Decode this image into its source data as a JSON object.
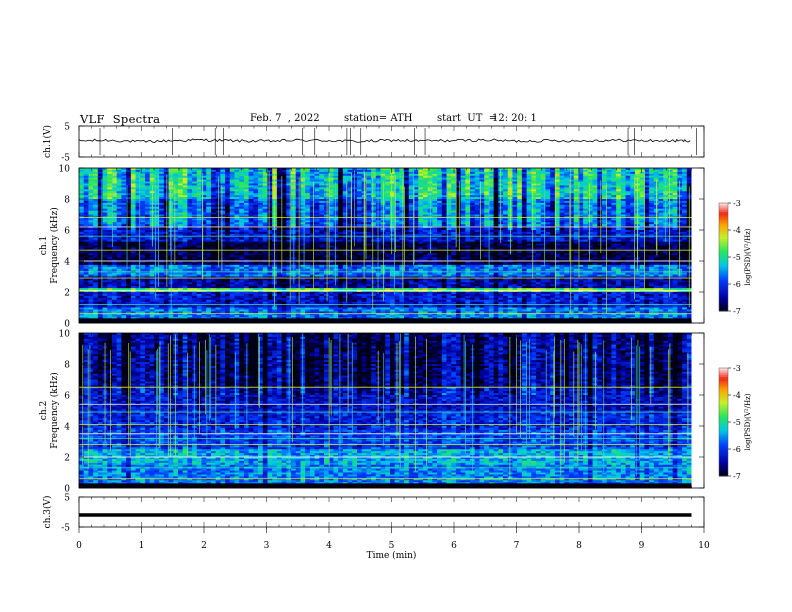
{
  "header": {
    "title": "VLF  Spectra",
    "date": "Feb. 7  , 2022",
    "station": "station= ATH",
    "start_ut_label": "start  UT  =",
    "start_ut_value": "12: 20: 1"
  },
  "chart_data": [
    {
      "type": "line",
      "name": "ch1-waveform",
      "ylabel": "ch.1(V)",
      "ylim": [
        -5,
        5
      ],
      "yticks": [
        "5",
        "-5"
      ],
      "xlim": [
        0,
        10
      ],
      "x": [
        0,
        0.5,
        1,
        1.5,
        2,
        2.5,
        3,
        3.5,
        4,
        4.5,
        5,
        5.5,
        6,
        6.5,
        7,
        7.5,
        8,
        8.5,
        9,
        9.5,
        9.8
      ],
      "y": [
        0.2,
        0.4,
        -0.1,
        0.3,
        0.5,
        0.2,
        0.1,
        0.4,
        0.3,
        0.0,
        0.4,
        0.2,
        0.3,
        0.5,
        0.1,
        0.3,
        0.2,
        0.4,
        0.3,
        0.2,
        0.3
      ],
      "color": "#000000"
    },
    {
      "type": "heatmap",
      "name": "ch1-spectrogram",
      "ylabel": "ch.1\nFrequency  (kHz)",
      "ylim": [
        0,
        10
      ],
      "yticks": [
        "0",
        "2",
        "4",
        "6",
        "8",
        "10"
      ],
      "xlim": [
        0,
        10
      ],
      "data_end_min": 9.8,
      "colorbar": {
        "label": "log(PSD)(V²/Hz)",
        "range": [
          -7,
          -3
        ],
        "ticks": [
          "-3",
          "-4",
          "-5",
          "-6",
          "-7"
        ]
      },
      "bands": [
        {
          "from": 0,
          "to": 0.3,
          "level": -7.0
        },
        {
          "from": 0.3,
          "to": 1.0,
          "level": -5.6
        },
        {
          "from": 1.0,
          "to": 2.0,
          "level": -6.2
        },
        {
          "from": 2.0,
          "to": 2.3,
          "level": -4.6
        },
        {
          "from": 2.3,
          "to": 3.0,
          "level": -6.4
        },
        {
          "from": 3.0,
          "to": 3.8,
          "level": -5.6
        },
        {
          "from": 3.8,
          "to": 5.2,
          "level": -6.8
        },
        {
          "from": 5.2,
          "to": 6.2,
          "level": -6.2
        },
        {
          "from": 6.2,
          "to": 8.0,
          "level": -5.6
        },
        {
          "from": 8.0,
          "to": 10.0,
          "level": -5.1
        }
      ],
      "tones_khz": [
        0.6,
        1.2,
        2.1,
        2.9,
        3.3,
        4.0,
        4.7,
        5.6,
        6.2,
        6.8
      ]
    },
    {
      "type": "heatmap",
      "name": "ch2-spectrogram",
      "ylabel": "ch.2\nFrequency  (kHz)",
      "ylim": [
        0,
        10
      ],
      "yticks": [
        "0",
        "2",
        "4",
        "6",
        "8",
        "10"
      ],
      "xlim": [
        0,
        10
      ],
      "data_end_min": 9.8,
      "colorbar": {
        "label": "log(PSD)(V²/Hz)",
        "range": [
          -7,
          -3
        ],
        "ticks": [
          "-3",
          "-4",
          "-5",
          "-6",
          "-7"
        ]
      },
      "bands": [
        {
          "from": 0,
          "to": 0.3,
          "level": -7.0
        },
        {
          "from": 0.3,
          "to": 1.5,
          "level": -5.6
        },
        {
          "from": 1.5,
          "to": 2.5,
          "level": -5.4
        },
        {
          "from": 2.5,
          "to": 3.8,
          "level": -5.9
        },
        {
          "from": 3.8,
          "to": 5.0,
          "level": -6.1
        },
        {
          "from": 5.0,
          "to": 6.5,
          "level": -6.3
        },
        {
          "from": 6.5,
          "to": 10.0,
          "level": -6.6
        }
      ],
      "tones_khz": [
        0.6,
        1.3,
        2.0,
        2.8,
        3.2,
        3.5,
        4.1,
        4.9,
        5.4,
        6.5
      ]
    },
    {
      "type": "line",
      "name": "ch3-waveform",
      "ylabel": "ch.3(V)",
      "ylim": [
        -5,
        5
      ],
      "yticks": [
        "5",
        "-5"
      ],
      "xlim": [
        0,
        10
      ],
      "x": [
        0,
        9.8
      ],
      "y": [
        -1,
        -1
      ],
      "color": "#000000"
    }
  ],
  "x_axis": {
    "label": "Time  (min)",
    "ticks": [
      "0",
      "1",
      "2",
      "3",
      "4",
      "5",
      "6",
      "7",
      "8",
      "9",
      "10"
    ]
  }
}
